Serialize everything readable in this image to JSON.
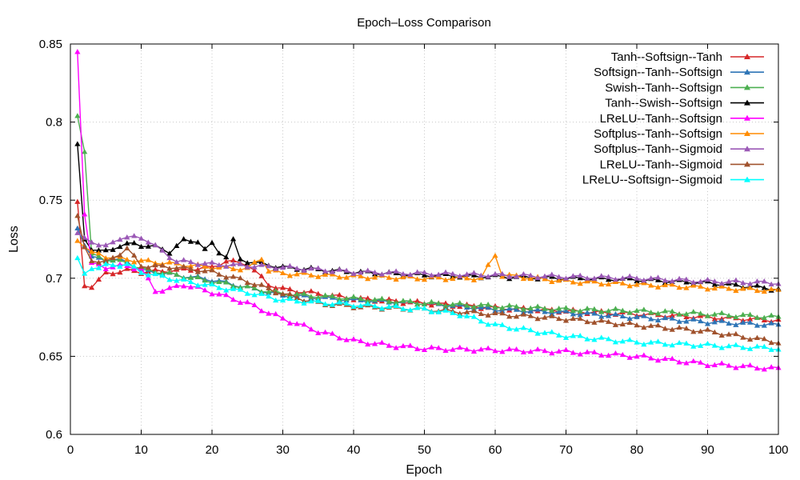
{
  "chart_data": {
    "type": "line",
    "title": "Epoch–Loss Comparison",
    "xlabel": "Epoch",
    "ylabel": "Loss",
    "xlim": [
      0,
      100
    ],
    "ylim": [
      0.6,
      0.85
    ],
    "x_ticks": [
      "0",
      "10",
      "20",
      "30",
      "40",
      "50",
      "60",
      "70",
      "80",
      "90",
      "100"
    ],
    "y_ticks": [
      "0.6",
      "0.65",
      "0.7",
      "0.75",
      "0.8",
      "0.85"
    ],
    "grid": true,
    "legend_position": "top-right",
    "marker": "triangle",
    "series": [
      {
        "name": "Tanh--Softsign--Tanh",
        "color": "#d62728",
        "anchors": [
          [
            1,
            0.749
          ],
          [
            2,
            0.695
          ],
          [
            3,
            0.694
          ],
          [
            5,
            0.703
          ],
          [
            8,
            0.705
          ],
          [
            10,
            0.704
          ],
          [
            15,
            0.705
          ],
          [
            20,
            0.707
          ],
          [
            22,
            0.711
          ],
          [
            25,
            0.709
          ],
          [
            28,
            0.696
          ],
          [
            30,
            0.693
          ],
          [
            40,
            0.687
          ],
          [
            50,
            0.684
          ],
          [
            60,
            0.681
          ],
          [
            70,
            0.679
          ],
          [
            80,
            0.677
          ],
          [
            90,
            0.675
          ],
          [
            100,
            0.673
          ]
        ]
      },
      {
        "name": "Softsign--Tanh--Softsign",
        "color": "#2e75b6",
        "anchors": [
          [
            1,
            0.732
          ],
          [
            2,
            0.721
          ],
          [
            3,
            0.714
          ],
          [
            5,
            0.712
          ],
          [
            8,
            0.711
          ],
          [
            10,
            0.705
          ],
          [
            20,
            0.699
          ],
          [
            30,
            0.689
          ],
          [
            40,
            0.686
          ],
          [
            50,
            0.684
          ],
          [
            60,
            0.68
          ],
          [
            70,
            0.678
          ],
          [
            80,
            0.675
          ],
          [
            90,
            0.672
          ],
          [
            100,
            0.67
          ]
        ]
      },
      {
        "name": "Swish--Tanh--Softsign",
        "color": "#4caf50",
        "anchors": [
          [
            1,
            0.804
          ],
          [
            2,
            0.781
          ],
          [
            3,
            0.716
          ],
          [
            5,
            0.712
          ],
          [
            8,
            0.71
          ],
          [
            10,
            0.706
          ],
          [
            20,
            0.698
          ],
          [
            30,
            0.69
          ],
          [
            40,
            0.687
          ],
          [
            50,
            0.684
          ],
          [
            60,
            0.682
          ],
          [
            70,
            0.68
          ],
          [
            80,
            0.679
          ],
          [
            90,
            0.677
          ],
          [
            100,
            0.675
          ]
        ]
      },
      {
        "name": "Tanh--Swish--Softsign",
        "color": "#000000",
        "anchors": [
          [
            1,
            0.786
          ],
          [
            2,
            0.725
          ],
          [
            3,
            0.718
          ],
          [
            5,
            0.717
          ],
          [
            7,
            0.721
          ],
          [
            9,
            0.722
          ],
          [
            12,
            0.72
          ],
          [
            14,
            0.717
          ],
          [
            16,
            0.724
          ],
          [
            18,
            0.724
          ],
          [
            19,
            0.718
          ],
          [
            20,
            0.722
          ],
          [
            21,
            0.717
          ],
          [
            22,
            0.714
          ],
          [
            23,
            0.724
          ],
          [
            24,
            0.712
          ],
          [
            26,
            0.71
          ],
          [
            30,
            0.707
          ],
          [
            40,
            0.704
          ],
          [
            50,
            0.702
          ],
          [
            60,
            0.701
          ],
          [
            70,
            0.7
          ],
          [
            80,
            0.699
          ],
          [
            90,
            0.697
          ],
          [
            100,
            0.693
          ]
        ]
      },
      {
        "name": "LReLU--Tanh--Softsign",
        "color": "#ff00ff",
        "anchors": [
          [
            1,
            0.845
          ],
          [
            2,
            0.741
          ],
          [
            3,
            0.71
          ],
          [
            5,
            0.707
          ],
          [
            8,
            0.708
          ],
          [
            10,
            0.706
          ],
          [
            12,
            0.692
          ],
          [
            14,
            0.693
          ],
          [
            16,
            0.696
          ],
          [
            20,
            0.691
          ],
          [
            25,
            0.684
          ],
          [
            30,
            0.674
          ],
          [
            35,
            0.666
          ],
          [
            40,
            0.66
          ],
          [
            45,
            0.657
          ],
          [
            50,
            0.655
          ],
          [
            60,
            0.654
          ],
          [
            70,
            0.653
          ],
          [
            80,
            0.65
          ],
          [
            90,
            0.645
          ],
          [
            100,
            0.642
          ]
        ]
      },
      {
        "name": "Softplus--Tanh--Softsign",
        "color": "#ff8c00",
        "anchors": [
          [
            1,
            0.724
          ],
          [
            2,
            0.72
          ],
          [
            3,
            0.717
          ],
          [
            5,
            0.714
          ],
          [
            8,
            0.712
          ],
          [
            10,
            0.711
          ],
          [
            15,
            0.709
          ],
          [
            20,
            0.707
          ],
          [
            25,
            0.706
          ],
          [
            27,
            0.713
          ],
          [
            28,
            0.705
          ],
          [
            30,
            0.703
          ],
          [
            40,
            0.701
          ],
          [
            50,
            0.7
          ],
          [
            58,
            0.7
          ],
          [
            60,
            0.715
          ],
          [
            61,
            0.702
          ],
          [
            70,
            0.698
          ],
          [
            80,
            0.696
          ],
          [
            90,
            0.694
          ],
          [
            100,
            0.692
          ]
        ]
      },
      {
        "name": "Softplus--Tanh--Sigmoid",
        "color": "#9b59b6",
        "anchors": [
          [
            1,
            0.729
          ],
          [
            2,
            0.726
          ],
          [
            3,
            0.723
          ],
          [
            5,
            0.72
          ],
          [
            7,
            0.726
          ],
          [
            10,
            0.726
          ],
          [
            11,
            0.724
          ],
          [
            13,
            0.717
          ],
          [
            15,
            0.711
          ],
          [
            20,
            0.709
          ],
          [
            30,
            0.707
          ],
          [
            40,
            0.704
          ],
          [
            50,
            0.703
          ],
          [
            60,
            0.702
          ],
          [
            70,
            0.701
          ],
          [
            80,
            0.7
          ],
          [
            90,
            0.698
          ],
          [
            100,
            0.697
          ]
        ]
      },
      {
        "name": "LReLU--Tanh--Sigmoid",
        "color": "#a0522d",
        "anchors": [
          [
            1,
            0.74
          ],
          [
            2,
            0.72
          ],
          [
            3,
            0.711
          ],
          [
            5,
            0.71
          ],
          [
            8,
            0.719
          ],
          [
            10,
            0.708
          ],
          [
            15,
            0.707
          ],
          [
            20,
            0.704
          ],
          [
            25,
            0.698
          ],
          [
            30,
            0.69
          ],
          [
            35,
            0.684
          ],
          [
            40,
            0.682
          ],
          [
            50,
            0.68
          ],
          [
            60,
            0.677
          ],
          [
            70,
            0.674
          ],
          [
            80,
            0.67
          ],
          [
            90,
            0.666
          ],
          [
            100,
            0.659
          ]
        ]
      },
      {
        "name": "LReLU--Softsign--Sigmoid",
        "color": "#00ffff",
        "anchors": [
          [
            1,
            0.713
          ],
          [
            2,
            0.703
          ],
          [
            3,
            0.706
          ],
          [
            5,
            0.708
          ],
          [
            8,
            0.709
          ],
          [
            10,
            0.704
          ],
          [
            15,
            0.699
          ],
          [
            20,
            0.695
          ],
          [
            25,
            0.691
          ],
          [
            30,
            0.686
          ],
          [
            40,
            0.683
          ],
          [
            50,
            0.68
          ],
          [
            55,
            0.677
          ],
          [
            60,
            0.67
          ],
          [
            70,
            0.663
          ],
          [
            80,
            0.659
          ],
          [
            90,
            0.657
          ],
          [
            100,
            0.655
          ]
        ]
      }
    ]
  }
}
